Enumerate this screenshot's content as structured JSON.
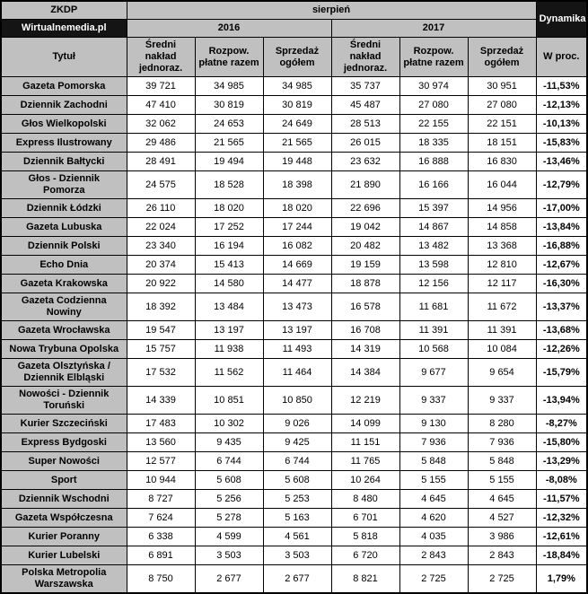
{
  "table": {
    "corner_top": "ZKDP",
    "corner_bottom": "Wirtualnemedia.pl",
    "month_header": "sierpień",
    "dynamics_header": "Dynamika",
    "year_2016": "2016",
    "year_2017": "2017",
    "title_column_header": "Tytuł",
    "metric_headers": [
      "Średni nakład jednoraz.",
      "Rozpow. płatne razem",
      "Sprzedaż ogółem"
    ],
    "dynamics_subheader": "W proc."
  },
  "chart_data": {
    "type": "table",
    "title": "ZKDP / Wirtualnemedia.pl — sierpień",
    "columns": [
      "Tytuł",
      "2016 Średni nakład jednoraz.",
      "2016 Rozpow. płatne razem",
      "2016 Sprzedaż ogółem",
      "2017 Średni nakład jednoraz.",
      "2017 Rozpow. płatne razem",
      "2017 Sprzedaż ogółem",
      "Dynamika W proc."
    ],
    "rows": [
      {
        "title": "Gazeta Pomorska",
        "values": [
          "39 721",
          "34 985",
          "34 985",
          "35 737",
          "30 974",
          "30 951"
        ],
        "dynamics": "-11,53%"
      },
      {
        "title": "Dziennik Zachodni",
        "values": [
          "47 410",
          "30 819",
          "30 819",
          "45 487",
          "27 080",
          "27 080"
        ],
        "dynamics": "-12,13%"
      },
      {
        "title": "Głos Wielkopolski",
        "values": [
          "32 062",
          "24 653",
          "24 649",
          "28 513",
          "22 155",
          "22 151"
        ],
        "dynamics": "-10,13%"
      },
      {
        "title": "Express Ilustrowany",
        "values": [
          "29 486",
          "21 565",
          "21 565",
          "26 015",
          "18 335",
          "18 151"
        ],
        "dynamics": "-15,83%"
      },
      {
        "title": "Dziennik Bałtycki",
        "values": [
          "28 491",
          "19 494",
          "19 448",
          "23 632",
          "16 888",
          "16 830"
        ],
        "dynamics": "-13,46%"
      },
      {
        "title": "Głos - Dziennik Pomorza",
        "values": [
          "24 575",
          "18 528",
          "18 398",
          "21 890",
          "16 166",
          "16 044"
        ],
        "dynamics": "-12,79%"
      },
      {
        "title": "Dziennik Łódzki",
        "values": [
          "26 110",
          "18 020",
          "18 020",
          "22 696",
          "15 397",
          "14 956"
        ],
        "dynamics": "-17,00%"
      },
      {
        "title": "Gazeta Lubuska",
        "values": [
          "22 024",
          "17 252",
          "17 244",
          "19 042",
          "14 867",
          "14 858"
        ],
        "dynamics": "-13,84%"
      },
      {
        "title": "Dziennik Polski",
        "values": [
          "23 340",
          "16 194",
          "16 082",
          "20 482",
          "13 482",
          "13 368"
        ],
        "dynamics": "-16,88%"
      },
      {
        "title": "Echo Dnia",
        "values": [
          "20 374",
          "15 413",
          "14 669",
          "19 159",
          "13 598",
          "12 810"
        ],
        "dynamics": "-12,67%"
      },
      {
        "title": "Gazeta Krakowska",
        "values": [
          "20 922",
          "14 580",
          "14 477",
          "18 878",
          "12 156",
          "12 117"
        ],
        "dynamics": "-16,30%"
      },
      {
        "title": "Gazeta Codzienna Nowiny",
        "values": [
          "18 392",
          "13 484",
          "13 473",
          "16 578",
          "11 681",
          "11 672"
        ],
        "dynamics": "-13,37%"
      },
      {
        "title": "Gazeta Wrocławska",
        "values": [
          "19 547",
          "13 197",
          "13 197",
          "16 708",
          "11 391",
          "11 391"
        ],
        "dynamics": "-13,68%"
      },
      {
        "title": "Nowa Trybuna Opolska",
        "values": [
          "15 757",
          "11 938",
          "11 493",
          "14 319",
          "10 568",
          "10 084"
        ],
        "dynamics": "-12,26%"
      },
      {
        "title": "Gazeta Olsztyńska / Dziennik Elbląski",
        "values": [
          "17 532",
          "11 562",
          "11 464",
          "14 384",
          "9 677",
          "9 654"
        ],
        "dynamics": "-15,79%"
      },
      {
        "title": "Nowości - Dziennik Toruński",
        "values": [
          "14 339",
          "10 851",
          "10 850",
          "12 219",
          "9 337",
          "9 337"
        ],
        "dynamics": "-13,94%"
      },
      {
        "title": "Kurier Szczeciński",
        "values": [
          "17 483",
          "10 302",
          "9 026",
          "14 099",
          "9 130",
          "8 280"
        ],
        "dynamics": "-8,27%"
      },
      {
        "title": "Express Bydgoski",
        "values": [
          "13 560",
          "9 435",
          "9 425",
          "11 151",
          "7 936",
          "7 936"
        ],
        "dynamics": "-15,80%"
      },
      {
        "title": "Super Nowości",
        "values": [
          "12 577",
          "6 744",
          "6 744",
          "11 765",
          "5 848",
          "5 848"
        ],
        "dynamics": "-13,29%"
      },
      {
        "title": "Sport",
        "values": [
          "10 944",
          "5 608",
          "5 608",
          "10 264",
          "5 155",
          "5 155"
        ],
        "dynamics": "-8,08%"
      },
      {
        "title": "Dziennik Wschodni",
        "values": [
          "8 727",
          "5 256",
          "5 253",
          "8 480",
          "4 645",
          "4 645"
        ],
        "dynamics": "-11,57%"
      },
      {
        "title": "Gazeta Współczesna",
        "values": [
          "7 624",
          "5 278",
          "5 163",
          "6 701",
          "4 620",
          "4 527"
        ],
        "dynamics": "-12,32%"
      },
      {
        "title": "Kurier Poranny",
        "values": [
          "6 338",
          "4 599",
          "4 561",
          "5 818",
          "4 035",
          "3 986"
        ],
        "dynamics": "-12,61%"
      },
      {
        "title": "Kurier Lubelski",
        "values": [
          "6 891",
          "3 503",
          "3 503",
          "6 720",
          "2 843",
          "2 843"
        ],
        "dynamics": "-18,84%"
      },
      {
        "title": "Polska Metropolia Warszawska",
        "values": [
          "8 750",
          "2 677",
          "2 677",
          "8 821",
          "2 725",
          "2 725"
        ],
        "dynamics": "1,79%"
      }
    ]
  },
  "colors": {
    "header_bg": "#c0c0c0",
    "dark_bg": "#141414",
    "dark_text": "#ffffff",
    "border": "#000000",
    "cell_bg": "#ffffff"
  }
}
